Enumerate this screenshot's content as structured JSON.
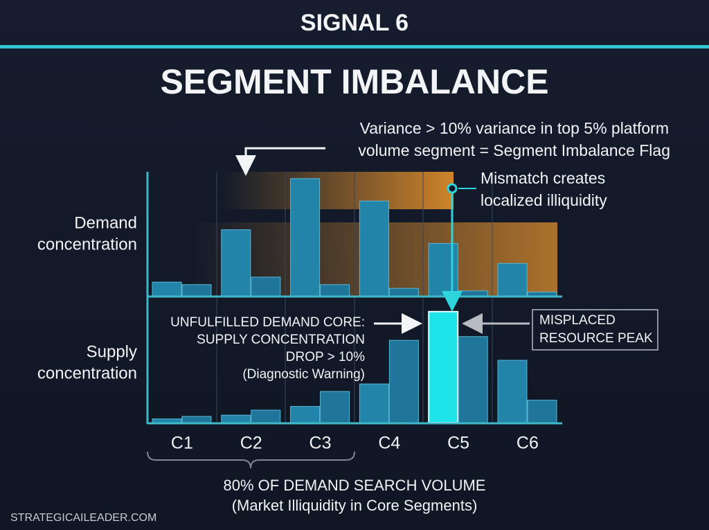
{
  "header": {
    "kicker": "SIGNAL 6",
    "title": "SEGMENT IMBALANCE"
  },
  "chart_data": {
    "type": "bar",
    "categories": [
      "C1",
      "C2",
      "C3",
      "C4",
      "C5",
      "C6"
    ],
    "panels": [
      {
        "label": [
          "Demand",
          "concentration"
        ],
        "ylim": [
          0,
          100
        ],
        "series": [
          {
            "color": "#2384aa",
            "values": [
              11,
              53,
              94,
              76,
              42,
              26
            ]
          },
          {
            "color": "#1f769a",
            "values": [
              9,
              15,
              9,
              6,
              4,
              3
            ]
          }
        ]
      },
      {
        "label": [
          "Supply",
          "concentration"
        ],
        "ylim": [
          0,
          100
        ],
        "series": [
          {
            "color": "#2384aa",
            "values": [
              3,
              6,
              13,
              31,
              89,
              50
            ],
            "highlight_index": 4,
            "highlight_color": "#1ee3e8"
          },
          {
            "color": "#1f769a",
            "values": [
              5,
              10,
              25,
              66,
              69,
              18
            ]
          }
        ]
      }
    ]
  },
  "annotations": {
    "flag": [
      "Variance > 10% variance in top 5% platform",
      "volume segment = Segment Imbalance Flag"
    ],
    "mismatch": [
      "Mismatch creates",
      "localized illiquidity"
    ],
    "core": [
      "UNFULFILLED DEMAND CORE:",
      "SUPPLY CONCENTRATION",
      "DROP > 10%",
      "(Diagnostic Warning)"
    ],
    "peak": [
      "MISPLACED",
      "RESOURCE PEAK"
    ],
    "bracket": [
      "80% OF DEMAND SEARCH VOLUME",
      "(Market Illiquidity in Core Segments)"
    ]
  },
  "footer": "STRATEGICAILEADER.COM"
}
